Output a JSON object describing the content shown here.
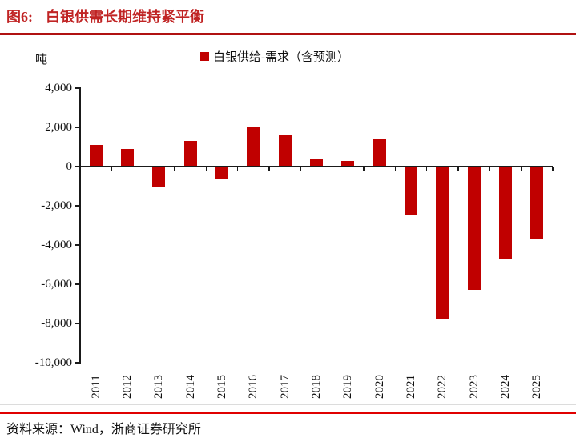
{
  "figure": {
    "label": "图6:",
    "title": "白银供需长期维持紧平衡"
  },
  "unit_label": "吨",
  "legend": {
    "label": "白银供给-需求（含预测）"
  },
  "footer": {
    "source_prefix": "资料来源：",
    "source_text": "Wind，浙商证券研究所"
  },
  "colors": {
    "bar": "#C00000",
    "legend_marker": "#C00000",
    "title_text": "#C02424",
    "title_rule": "#B01111",
    "source_rule": "#E00000",
    "axis": "#1A1A1A"
  },
  "chart_data": {
    "type": "bar",
    "title": "白银供需长期维持紧平衡",
    "ylabel": "吨",
    "xlabel": "",
    "legend_entries": [
      "白银供给-需求（含预测）"
    ],
    "legend_position": "top",
    "grid": false,
    "categories": [
      "2011",
      "2012",
      "2013",
      "2014",
      "2015",
      "2016",
      "2017",
      "2018",
      "2019",
      "2020",
      "2021",
      "2022",
      "2023",
      "2024",
      "2025"
    ],
    "values": [
      1100,
      900,
      -1000,
      1300,
      -600,
      2000,
      1600,
      400,
      300,
      1400,
      -2500,
      -7800,
      -6300,
      -4700,
      -3700
    ],
    "ylim": [
      -10000,
      4000
    ],
    "ytick_values": [
      4000,
      2000,
      0,
      -2000,
      -4000,
      -6000,
      -8000,
      -10000
    ],
    "ytick_labels": [
      "4,000",
      "2,000",
      "0",
      "-2,000",
      "-4,000",
      "-6,000",
      "-8,000",
      "-10,000"
    ],
    "bar_color": "#C00000"
  }
}
